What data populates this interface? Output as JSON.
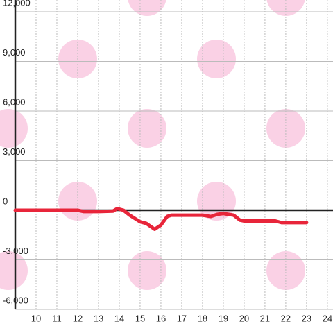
{
  "chart_data": {
    "type": "line",
    "x": [
      9,
      12,
      12.3,
      13,
      13.7,
      13.9,
      14.2,
      14.5,
      15,
      15.3,
      15.7,
      16,
      16.3,
      16.5,
      18,
      18.4,
      18.7,
      19,
      19.5,
      19.8,
      20,
      21.5,
      21.8,
      23
    ],
    "series": [
      {
        "color": "#e8253a",
        "values": [
          0,
          0,
          -80,
          -80,
          -50,
          100,
          0,
          -300,
          -700,
          -800,
          -1150,
          -900,
          -380,
          -300,
          -300,
          -380,
          -250,
          -200,
          -300,
          -600,
          -650,
          -650,
          -750,
          -750
        ]
      }
    ],
    "xlim": [
      9,
      24.27
    ],
    "xticks": [
      10,
      11,
      12,
      13,
      14,
      15,
      16,
      17,
      18,
      19,
      20,
      21,
      22,
      23,
      24
    ],
    "ylim": [
      -6000,
      12000
    ],
    "yticks": [
      {
        "value": -6000,
        "label": "-6,000"
      },
      {
        "value": -3000,
        "label": "-3,000"
      },
      0,
      {
        "value": 3000,
        "label": "3,000"
      },
      {
        "value": 6000,
        "label": "6,000"
      },
      {
        "value": 9000,
        "label": "9,000"
      },
      {
        "value": 12000,
        "label": "12,000"
      }
    ],
    "grid": true
  }
}
